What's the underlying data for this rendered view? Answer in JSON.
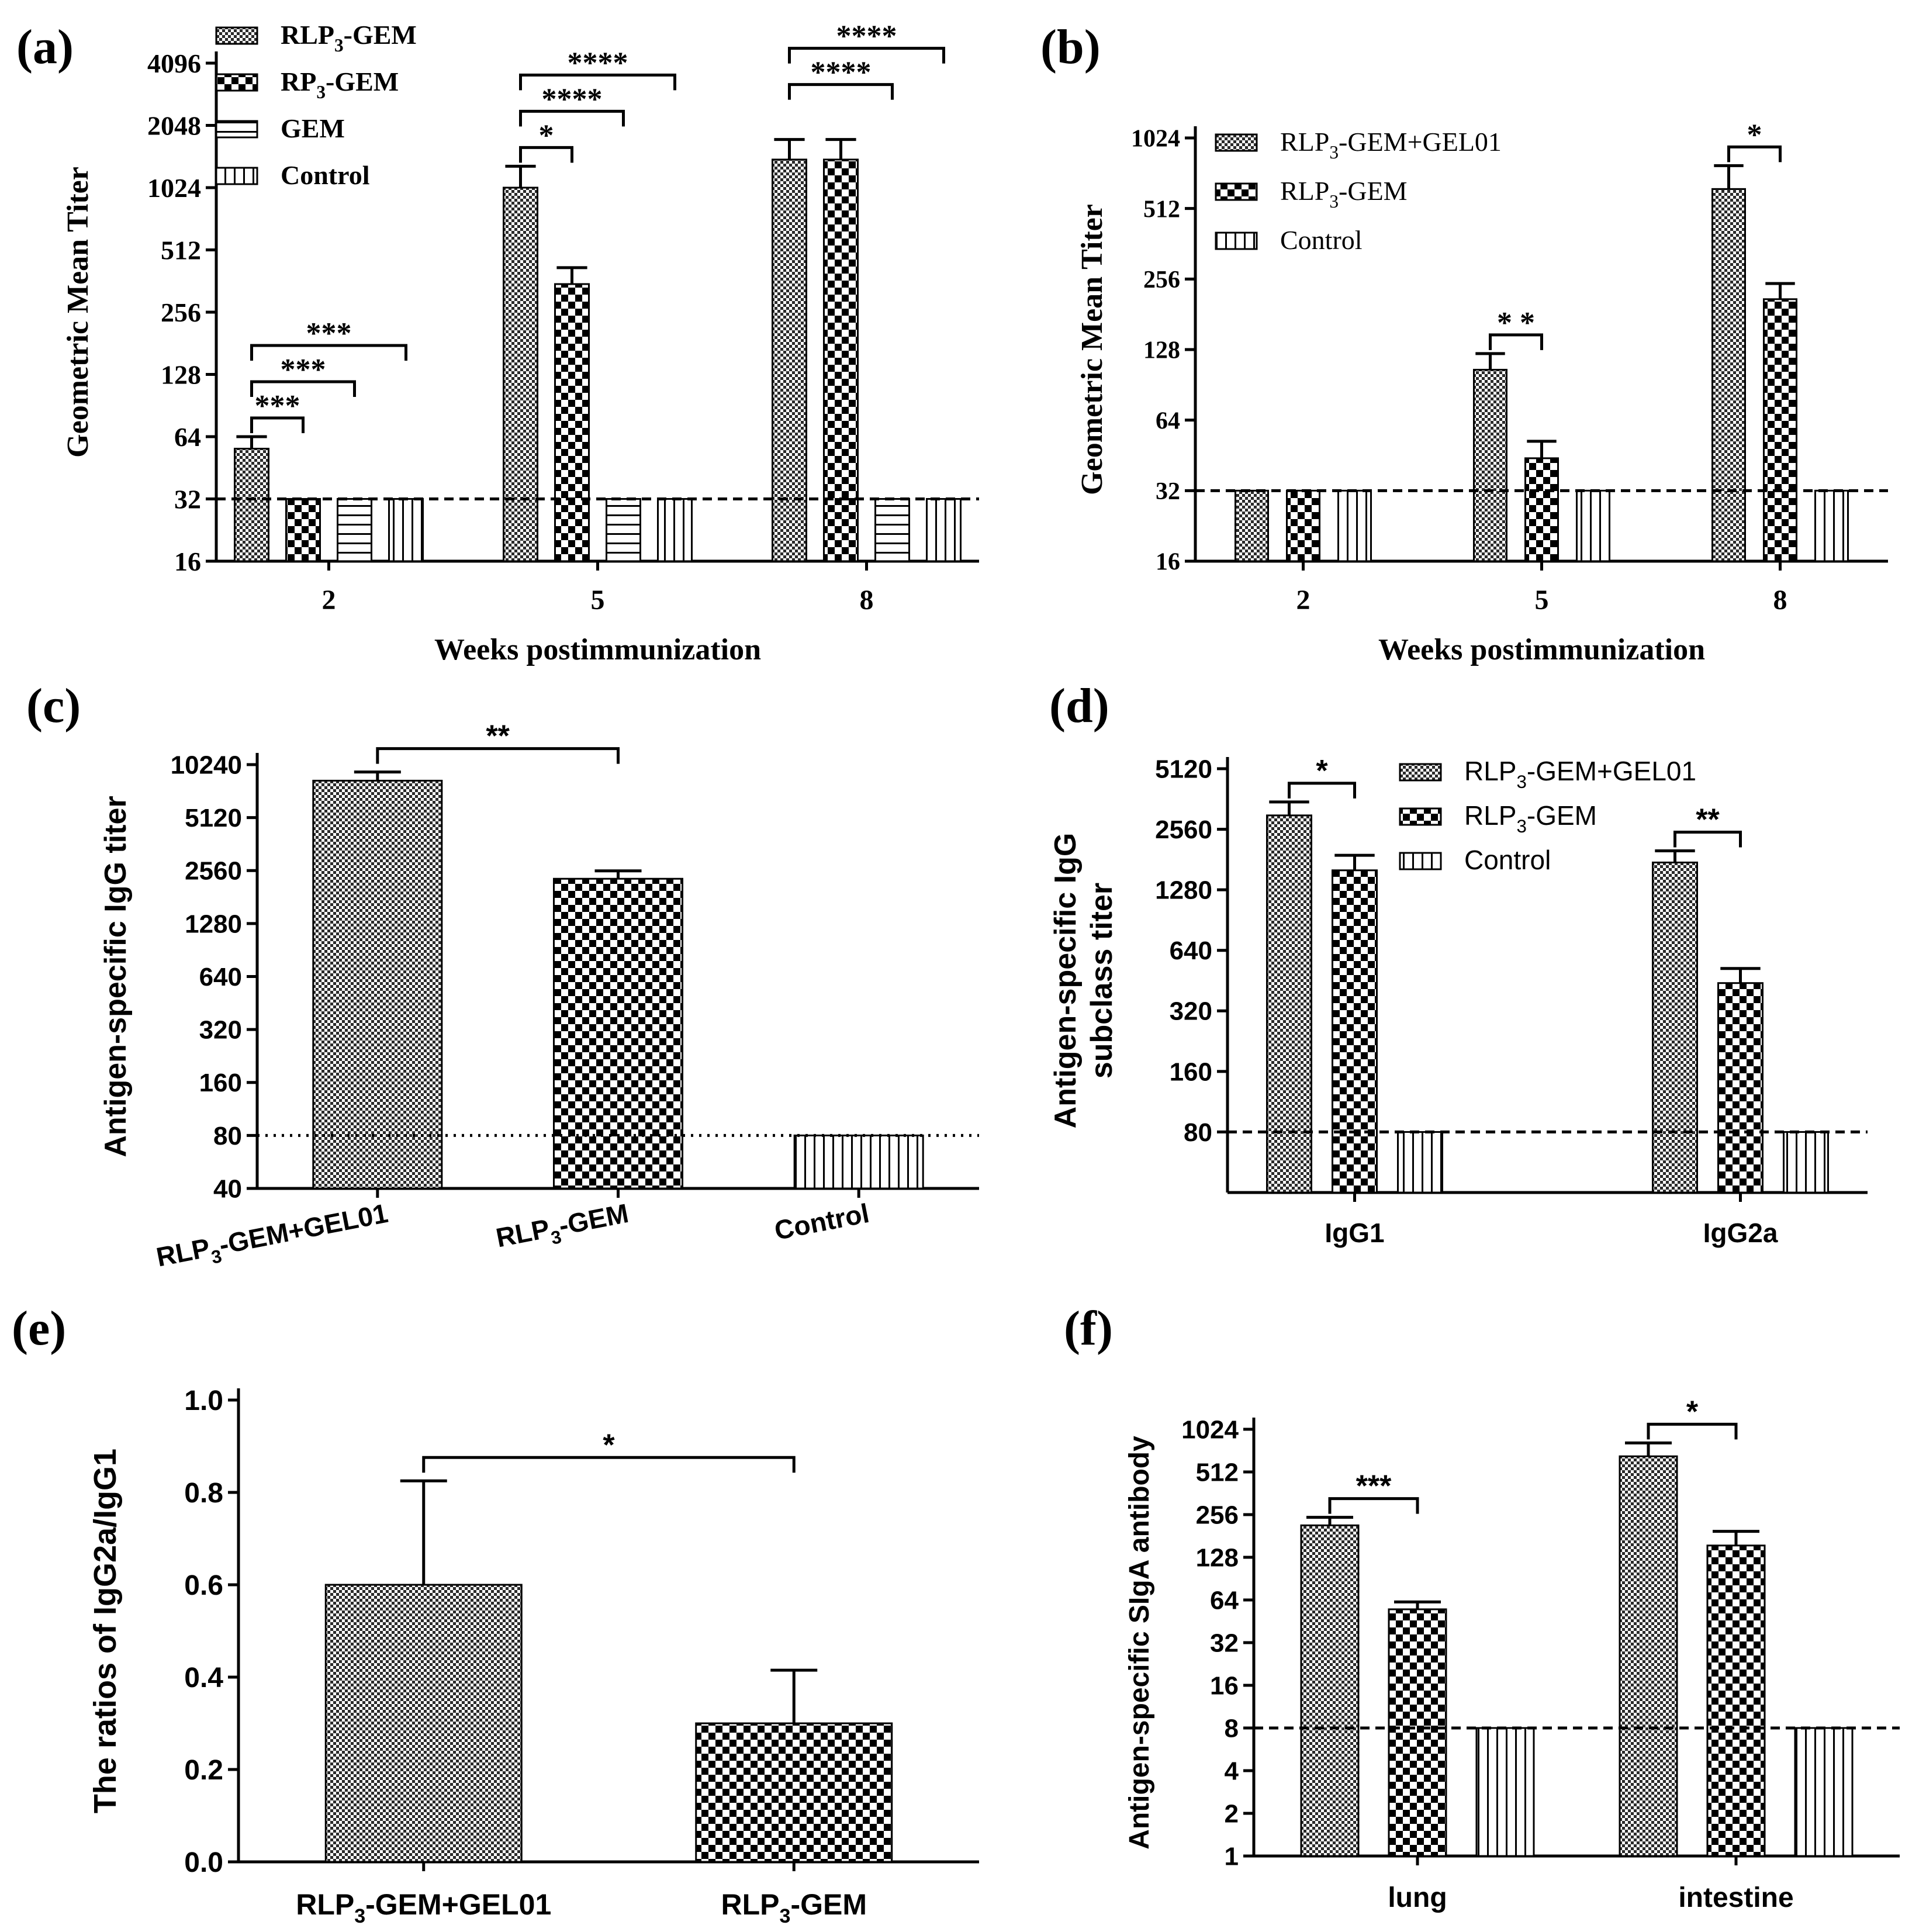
{
  "chart_data": [
    {
      "id": "a",
      "panel_label": "(a)",
      "type": "bar",
      "yscale": "log2",
      "ylim": [
        16,
        4096
      ],
      "yticks": [
        "16",
        "32",
        "64",
        "128",
        "256",
        "512",
        "1024",
        "2048",
        "4096"
      ],
      "ylabel": "Geometric Mean Titer",
      "xlabel": "Weeks postimmunization",
      "categories": [
        "2",
        "5",
        "8"
      ],
      "legend_position": "top-left",
      "baseline": 32,
      "series": [
        {
          "name": "RLP3-GEM",
          "name_main": "RLP",
          "name_sub": "3",
          "name_rest": "-GEM",
          "pattern": "fine-check",
          "values": [
            56,
            1024,
            1400
          ],
          "errors": [
            64,
            1300,
            1750
          ]
        },
        {
          "name": "RP3-GEM",
          "name_main": "RP",
          "name_sub": "3",
          "name_rest": "-GEM",
          "pattern": "check",
          "values": [
            32,
            350,
            1400
          ],
          "errors": [
            32,
            420,
            1750
          ]
        },
        {
          "name": "GEM",
          "name_main": "GEM",
          "name_sub": "",
          "name_rest": "",
          "pattern": "hlines",
          "values": [
            32,
            32,
            32
          ],
          "errors": [
            32,
            32,
            32
          ]
        },
        {
          "name": "Control",
          "name_main": "Control",
          "name_sub": "",
          "name_rest": "",
          "pattern": "vlines",
          "values": [
            32,
            32,
            32
          ],
          "errors": [
            32,
            32,
            32
          ]
        }
      ],
      "significance": [
        {
          "group": 0,
          "from": 0,
          "to": 1,
          "level": 0,
          "label": "***"
        },
        {
          "group": 0,
          "from": 0,
          "to": 2,
          "level": 1,
          "label": "***"
        },
        {
          "group": 0,
          "from": 0,
          "to": 3,
          "level": 2,
          "label": "***"
        },
        {
          "group": 1,
          "from": 0,
          "to": 1,
          "level": 0,
          "label": "*"
        },
        {
          "group": 1,
          "from": 0,
          "to": 2,
          "level": 1,
          "label": "****"
        },
        {
          "group": 1,
          "from": 0,
          "to": 3,
          "level": 2,
          "label": "****"
        },
        {
          "group": 2,
          "from": 0,
          "to": 2,
          "level": 1,
          "label": "****"
        },
        {
          "group": 2,
          "from": 0,
          "to": 3,
          "level": 2,
          "label": "****"
        }
      ]
    },
    {
      "id": "b",
      "panel_label": "(b)",
      "type": "bar",
      "yscale": "log2",
      "ylim": [
        16,
        1024
      ],
      "yticks": [
        "16",
        "32",
        "64",
        "128",
        "256",
        "512",
        "1024"
      ],
      "ylabel": "Geometric Mean Titer",
      "xlabel": "Weeks postimmunization",
      "categories": [
        "2",
        "5",
        "8"
      ],
      "legend_position": "top-left",
      "baseline": 32,
      "series": [
        {
          "name": "RLP3-GEM+GEL01",
          "name_main": "RLP",
          "name_sub": "3",
          "name_rest": "-GEM+GEL01",
          "pattern": "fine-check",
          "values": [
            32,
            105,
            620
          ],
          "errors": [
            32,
            123,
            780
          ]
        },
        {
          "name": "RLP3-GEM",
          "name_main": "RLP",
          "name_sub": "3",
          "name_rest": "-GEM",
          "pattern": "check",
          "values": [
            32,
            44,
            210
          ],
          "errors": [
            32,
            52,
            245
          ]
        },
        {
          "name": "Control",
          "name_main": "Control",
          "name_sub": "",
          "name_rest": "",
          "pattern": "vlines",
          "values": [
            32,
            32,
            32
          ],
          "errors": [
            32,
            32,
            32
          ]
        }
      ],
      "significance": [
        {
          "group": 1,
          "from": 0,
          "to": 1,
          "level": 0,
          "label": "* *"
        },
        {
          "group": 2,
          "from": 0,
          "to": 1,
          "level": 0,
          "label": "*"
        }
      ]
    },
    {
      "id": "c",
      "panel_label": "(c)",
      "type": "bar",
      "yscale": "log2",
      "ylim": [
        40,
        10240
      ],
      "yticks": [
        "40",
        "80",
        "160",
        "320",
        "640",
        "1280",
        "2560",
        "5120",
        "10240"
      ],
      "ylabel": "Antigen-specific IgG titer",
      "xlabel": "",
      "categories": [
        "RLP3-GEM+GEL01",
        "RLP3-GEM",
        "Control"
      ],
      "category_labels": [
        {
          "main": "RLP",
          "sub": "3",
          "rest": "-GEM+GEL01"
        },
        {
          "main": "RLP",
          "sub": "3",
          "rest": "-GEM"
        },
        {
          "main": "Control",
          "sub": "",
          "rest": ""
        }
      ],
      "baseline": 80,
      "series": [
        {
          "name": "",
          "patterns": [
            "fine-check",
            "check",
            "vlines"
          ],
          "values": [
            8300,
            2300,
            80
          ],
          "errors": [
            9300,
            2550,
            80
          ]
        }
      ],
      "significance": [
        {
          "from": 0,
          "to": 1,
          "label": "**"
        }
      ]
    },
    {
      "id": "d",
      "panel_label": "(d)",
      "type": "bar",
      "yscale": "log2",
      "ylim": [
        40,
        5120
      ],
      "yticks": [
        "80",
        "160",
        "320",
        "640",
        "1280",
        "2560",
        "5120"
      ],
      "ylabel": "Antigen-specific IgG subclass titer",
      "ylabel_lines": [
        "Antigen-specific IgG",
        "subclass titer"
      ],
      "xlabel": "",
      "categories": [
        "IgG1",
        "IgG2a"
      ],
      "legend_position": "top-right",
      "baseline": 80,
      "series": [
        {
          "name": "RLP3-GEM+GEL01",
          "name_main": "RLP",
          "name_sub": "3",
          "name_rest": "-GEM+GEL01",
          "pattern": "fine-check",
          "values": [
            3000,
            1750
          ],
          "errors": [
            3500,
            2000
          ]
        },
        {
          "name": "RLP3-GEM",
          "name_main": "RLP",
          "name_sub": "3",
          "name_rest": "-GEM",
          "pattern": "check",
          "values": [
            1600,
            440
          ],
          "errors": [
            1900,
            520
          ]
        },
        {
          "name": "Control",
          "name_main": "Control",
          "name_sub": "",
          "name_rest": "",
          "pattern": "vlines",
          "values": [
            80,
            80
          ],
          "errors": [
            80,
            80
          ]
        }
      ],
      "significance": [
        {
          "group": 0,
          "from": 0,
          "to": 1,
          "level": 0,
          "label": "*"
        },
        {
          "group": 1,
          "from": 0,
          "to": 1,
          "level": 0,
          "label": "**"
        }
      ]
    },
    {
      "id": "e",
      "panel_label": "(e)",
      "type": "bar",
      "yscale": "linear",
      "ylim": [
        0,
        1.0
      ],
      "yticks": [
        "0.0",
        "0.2",
        "0.4",
        "0.6",
        "0.8",
        "1.0"
      ],
      "ylabel": "The ratios of IgG2a/IgG1",
      "xlabel": "",
      "categories": [
        "RLP3-GEM+GEL01",
        "RLP3-GEM"
      ],
      "category_labels": [
        {
          "main": "RLP",
          "sub": "3",
          "rest": "-GEM+GEL01"
        },
        {
          "main": "RLP",
          "sub": "3",
          "rest": "-GEM"
        }
      ],
      "series": [
        {
          "name": "",
          "patterns": [
            "fine-check",
            "check"
          ],
          "values": [
            0.6,
            0.3
          ],
          "errors": [
            0.825,
            0.415
          ]
        }
      ],
      "significance": [
        {
          "from": 0,
          "to": 1,
          "label": "*"
        }
      ]
    },
    {
      "id": "f",
      "panel_label": "(f)",
      "type": "bar",
      "yscale": "log2",
      "ylim": [
        1,
        1024
      ],
      "yticks": [
        "1",
        "2",
        "4",
        "8",
        "16",
        "32",
        "64",
        "128",
        "256",
        "512",
        "1024"
      ],
      "ylabel": "Antigen-specific SIgA antibody",
      "xlabel": "",
      "categories": [
        "lung",
        "intestine"
      ],
      "baseline": 8,
      "series": [
        {
          "name": "RLP3-GEM+GEL01",
          "pattern": "fine-check",
          "values": [
            215,
            660
          ],
          "errors": [
            245,
            820
          ]
        },
        {
          "name": "RLP3-GEM",
          "pattern": "check",
          "values": [
            55,
            155
          ],
          "errors": [
            62,
            195
          ]
        },
        {
          "name": "Control",
          "pattern": "vlines",
          "values": [
            8,
            8
          ],
          "errors": [
            8,
            8
          ]
        }
      ],
      "significance": [
        {
          "group": 0,
          "from": 0,
          "to": 1,
          "level": 0,
          "label": "***"
        },
        {
          "group": 1,
          "from": 0,
          "to": 1,
          "level": 0,
          "label": "*"
        }
      ]
    }
  ]
}
